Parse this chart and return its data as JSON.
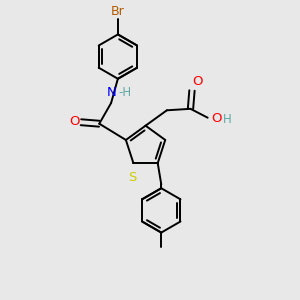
{
  "background_color": "#e8e8e8",
  "bond_color": "#000000",
  "bond_width": 1.4,
  "atom_colors": {
    "Br": "#b35a00",
    "N": "#0000ff",
    "O": "#ff0000",
    "S": "#cccc00",
    "H": "#5fa8a8"
  },
  "font_size": 8.5,
  "font_size_small": 7.5
}
